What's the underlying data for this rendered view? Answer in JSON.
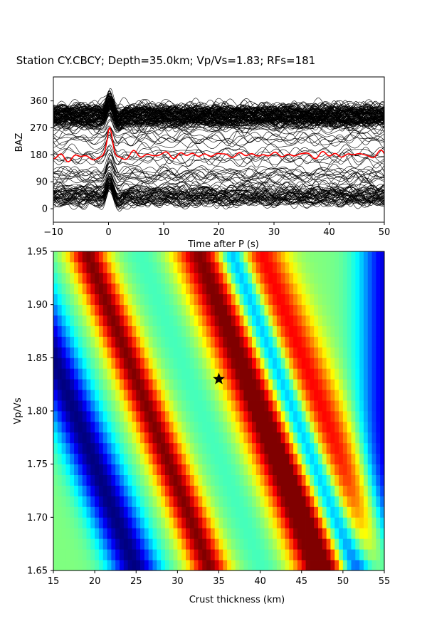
{
  "title": "Station CY.CBCY; Depth=35.0km; Vp/Vs=1.83; RFs=181",
  "chart_data": [
    {
      "type": "line",
      "xlabel": "Time after P (s)",
      "ylabel": "BAZ",
      "xlim": [
        -10,
        50
      ],
      "ylim": [
        -45,
        440
      ],
      "x_ticks": [
        "−10",
        "0",
        "10",
        "20",
        "30",
        "40",
        "50"
      ],
      "y_ticks": [
        "0",
        "90",
        "180",
        "270",
        "360"
      ],
      "trace_count": 181,
      "trace_color": "#000000",
      "stack_color": "#ff0000",
      "stack_baseline": 180,
      "grid": false,
      "legend": "none"
    },
    {
      "type": "heatmap",
      "xlabel": "Crust thickness (km)",
      "ylabel": "Vp/Vs",
      "xlim": [
        15,
        55
      ],
      "ylim": [
        1.65,
        1.95
      ],
      "x_ticks": [
        "15",
        "20",
        "25",
        "30",
        "35",
        "40",
        "45",
        "50",
        "55"
      ],
      "y_ticks": [
        "1.65",
        "1.70",
        "1.75",
        "1.80",
        "1.85",
        "1.90",
        "1.95"
      ],
      "colormap": "jet",
      "best_fit": {
        "thickness": 35.0,
        "vpvs": 1.83,
        "marker": "star-icon"
      },
      "grid": false,
      "legend": "none"
    }
  ]
}
